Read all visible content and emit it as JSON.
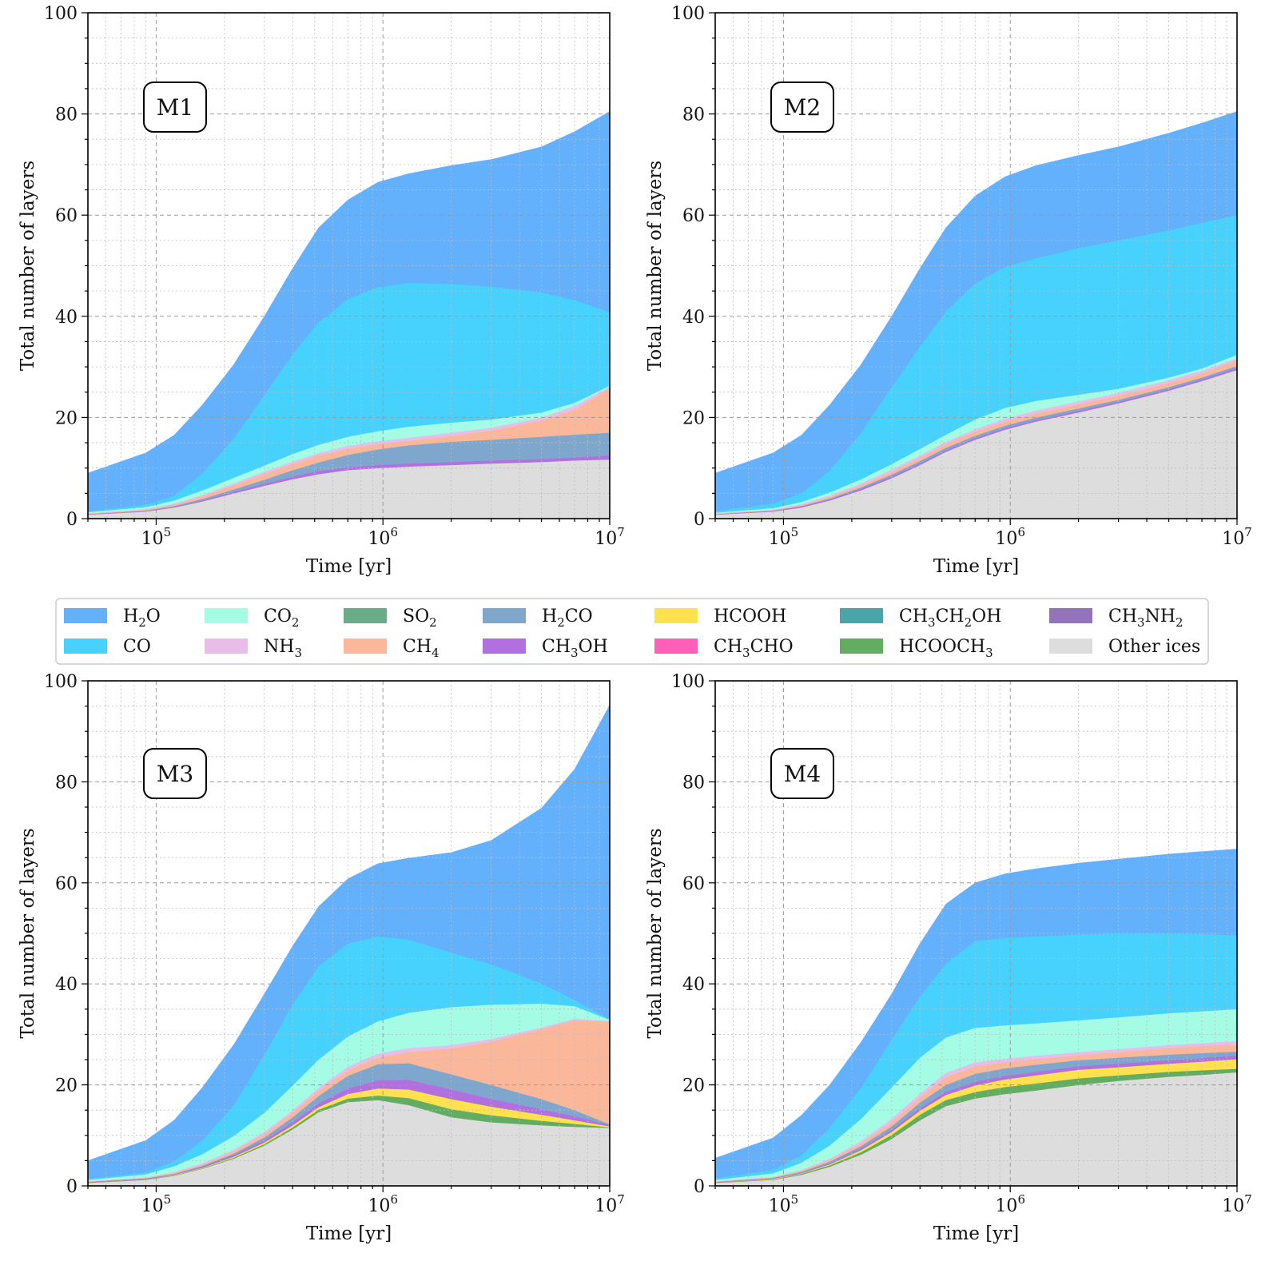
{
  "legend": [
    {
      "key": "Other ices",
      "parts": [
        [
          "Other ices",
          ""
        ]
      ],
      "color": "#dddddd"
    },
    {
      "key": "HCOOCH3",
      "parts": [
        [
          "HCOOCH",
          ""
        ],
        [
          "3",
          "sub"
        ]
      ],
      "color": "#63ad62"
    },
    {
      "key": "HCOOH",
      "parts": [
        [
          "HCOOH",
          ""
        ]
      ],
      "color": "#ffe14d"
    },
    {
      "key": "CH3OH",
      "parts": [
        [
          "CH",
          ""
        ],
        [
          "3",
          "sub"
        ],
        [
          "OH",
          ""
        ]
      ],
      "color": "#b26fe0"
    },
    {
      "key": "H2CO",
      "parts": [
        [
          "H",
          ""
        ],
        [
          "2",
          "sub"
        ],
        [
          "CO",
          ""
        ]
      ],
      "color": "#7fa6cc"
    },
    {
      "key": "CH4",
      "parts": [
        [
          "CH",
          ""
        ],
        [
          "4",
          "sub"
        ]
      ],
      "color": "#fbb79a"
    },
    {
      "key": "NH3",
      "parts": [
        [
          "NH",
          ""
        ],
        [
          "3",
          "sub"
        ]
      ],
      "color": "#e8bde8"
    },
    {
      "key": "CO2",
      "parts": [
        [
          "CO",
          ""
        ],
        [
          "2",
          "sub"
        ]
      ],
      "color": "#a3fce3"
    },
    {
      "key": "CO",
      "parts": [
        [
          "CO",
          ""
        ]
      ],
      "color": "#47d2fd"
    },
    {
      "key": "H2O",
      "parts": [
        [
          "H",
          ""
        ],
        [
          "2",
          "sub"
        ],
        [
          "O",
          ""
        ]
      ],
      "color": "#63b0fd"
    },
    {
      "key": "SO2",
      "parts": [
        [
          "SO",
          ""
        ],
        [
          "2",
          "sub"
        ]
      ],
      "color": "#6aac87"
    },
    {
      "key": "CH3CHO",
      "parts": [
        [
          "CH",
          ""
        ],
        [
          "3",
          "sub"
        ],
        [
          "CHO",
          ""
        ]
      ],
      "color": "#ff5fb8"
    },
    {
      "key": "CH3CH2OH",
      "parts": [
        [
          "CH",
          ""
        ],
        [
          "3",
          "sub"
        ],
        [
          "CH",
          ""
        ],
        [
          "2",
          "sub"
        ],
        [
          "OH",
          ""
        ]
      ],
      "color": "#49a5a8"
    },
    {
      "key": "CH3NH2",
      "parts": [
        [
          "CH",
          ""
        ],
        [
          "3",
          "sub"
        ],
        [
          "NH",
          ""
        ],
        [
          "2",
          "sub"
        ]
      ],
      "color": "#9473bd"
    }
  ],
  "legend_order": [
    "H2O",
    "CO",
    "CO2",
    "NH3",
    "SO2",
    "CH4",
    "H2CO",
    "CH3OH",
    "HCOOH",
    "CH3CHO",
    "CH3CH2OH",
    "HCOOCH3",
    "CH3NH2",
    "Other ices"
  ],
  "chart_data": [
    {
      "type": "area",
      "stacked": true,
      "panel": "M1",
      "xlabel": "Time [yr]",
      "ylabel": "Total number of layers",
      "xscale": "log",
      "xlim": [
        50000,
        10000000
      ],
      "ylim": [
        0,
        100
      ],
      "xticks": [
        "10^5",
        "10^6",
        "10^7"
      ],
      "yticks": [
        0,
        20,
        40,
        60,
        80,
        100
      ],
      "x": [
        50000,
        90000,
        120000,
        160000,
        220000,
        300000,
        400000,
        520000,
        700000,
        950000,
        1300000,
        2000000,
        3000000,
        5000000,
        7000000,
        10000000
      ],
      "stack_tops": [
        {
          "key": "Other ices",
          "values": [
            0.8,
            1.4,
            2.2,
            3.4,
            5.0,
            6.5,
            7.8,
            8.8,
            9.6,
            10.0,
            10.3,
            10.6,
            10.9,
            11.2,
            11.5,
            11.7
          ]
        },
        {
          "key": "CH3OH",
          "values": [
            0.9,
            1.5,
            2.3,
            3.6,
            5.3,
            6.9,
            8.3,
            9.4,
            10.2,
            10.6,
            10.9,
            11.2,
            11.5,
            11.8,
            12.1,
            12.5
          ]
        },
        {
          "key": "H2CO",
          "values": [
            0.9,
            1.6,
            2.5,
            3.9,
            5.8,
            7.7,
            9.6,
            11.1,
            12.6,
            13.7,
            14.5,
            15.2,
            15.6,
            16.2,
            16.6,
            17.0
          ]
        },
        {
          "key": "CH4",
          "values": [
            1.0,
            1.8,
            2.8,
            4.4,
            6.6,
            8.8,
            10.8,
            12.5,
            13.8,
            14.7,
            15.4,
            16.4,
            17.4,
            19.4,
            21.5,
            25.8
          ]
        },
        {
          "key": "NH3",
          "values": [
            1.1,
            1.9,
            3.0,
            4.7,
            7.0,
            9.3,
            11.3,
            13.0,
            14.4,
            15.3,
            16.0,
            17.0,
            18.0,
            20.0,
            22.3,
            26.1
          ]
        },
        {
          "key": "CO2",
          "values": [
            1.3,
            2.3,
            3.6,
            5.6,
            8.1,
            10.5,
            12.8,
            14.6,
            16.2,
            17.3,
            18.2,
            19.0,
            19.6,
            21.0,
            22.9,
            26.3
          ]
        },
        {
          "key": "CO",
          "values": [
            1.4,
            2.8,
            4.5,
            9.0,
            15.8,
            24.5,
            32.5,
            38.8,
            43.4,
            45.8,
            46.6,
            46.4,
            45.9,
            44.7,
            43.2,
            40.8
          ]
        },
        {
          "key": "H2O",
          "values": [
            9.0,
            13.0,
            16.5,
            22.5,
            30.5,
            40.0,
            49.5,
            57.5,
            63.0,
            66.5,
            68.2,
            69.8,
            71.0,
            73.5,
            76.5,
            80.5
          ]
        }
      ]
    },
    {
      "type": "area",
      "stacked": true,
      "panel": "M2",
      "xlabel": "Time [yr]",
      "ylabel": "Total number of layers",
      "xscale": "log",
      "xlim": [
        50000,
        10000000
      ],
      "ylim": [
        0,
        100
      ],
      "xticks": [
        "10^5",
        "10^6",
        "10^7"
      ],
      "yticks": [
        0,
        20,
        40,
        60,
        80,
        100
      ],
      "x": [
        50000,
        90000,
        120000,
        160000,
        220000,
        300000,
        400000,
        520000,
        700000,
        950000,
        1300000,
        2000000,
        3000000,
        5000000,
        7000000,
        10000000
      ],
      "stack_tops": [
        {
          "key": "Other ices",
          "values": [
            0.8,
            1.4,
            2.2,
            3.6,
            5.6,
            8.0,
            10.6,
            13.2,
            15.6,
            17.6,
            19.2,
            21.0,
            22.8,
            25.3,
            27.2,
            29.4
          ]
        },
        {
          "key": "CH3OH",
          "values": [
            0.9,
            1.5,
            2.4,
            3.8,
            5.9,
            8.3,
            10.9,
            13.5,
            15.9,
            17.9,
            19.5,
            21.3,
            23.1,
            25.6,
            27.5,
            29.8
          ]
        },
        {
          "key": "H2CO",
          "values": [
            0.9,
            1.6,
            2.5,
            4.0,
            6.2,
            8.7,
            11.4,
            14.0,
            16.4,
            18.4,
            20.0,
            21.8,
            23.5,
            26.0,
            27.9,
            30.2
          ]
        },
        {
          "key": "CH4",
          "values": [
            1.0,
            1.7,
            2.7,
            4.3,
            6.6,
            9.2,
            12.0,
            14.7,
            17.2,
            19.2,
            20.8,
            22.6,
            24.3,
            26.8,
            28.7,
            31.3
          ]
        },
        {
          "key": "NH3",
          "values": [
            1.1,
            1.8,
            2.9,
            4.6,
            7.0,
            9.7,
            12.5,
            15.2,
            17.7,
            19.8,
            21.4,
            23.2,
            24.9,
            27.4,
            29.3,
            31.7
          ]
        },
        {
          "key": "CO2",
          "values": [
            1.2,
            2.1,
            3.3,
            5.2,
            7.8,
            10.8,
            13.8,
            16.6,
            19.6,
            21.9,
            23.3,
            24.5,
            25.7,
            27.9,
            29.7,
            32.4
          ]
        },
        {
          "key": "CO",
          "values": [
            1.5,
            3.0,
            5.0,
            9.5,
            17.0,
            26.0,
            34.0,
            41.0,
            46.5,
            49.8,
            51.5,
            53.5,
            55.0,
            57.0,
            58.5,
            60.0
          ]
        },
        {
          "key": "H2O",
          "values": [
            9.0,
            13.0,
            16.5,
            22.5,
            30.5,
            40.0,
            49.5,
            57.5,
            63.8,
            67.6,
            69.8,
            71.8,
            73.5,
            76.2,
            78.2,
            80.5
          ]
        }
      ]
    },
    {
      "type": "area",
      "stacked": true,
      "panel": "M3",
      "xlabel": "Time [yr]",
      "ylabel": "Total number of layers",
      "xscale": "log",
      "xlim": [
        50000,
        10000000
      ],
      "ylim": [
        0,
        100
      ],
      "xticks": [
        "10^5",
        "10^6",
        "10^7"
      ],
      "yticks": [
        0,
        20,
        40,
        60,
        80,
        100
      ],
      "x": [
        50000,
        90000,
        120000,
        160000,
        220000,
        300000,
        400000,
        520000,
        700000,
        950000,
        1300000,
        2000000,
        3000000,
        5000000,
        7000000,
        10000000
      ],
      "stack_tops": [
        {
          "key": "Other ices",
          "values": [
            0.6,
            1.2,
            2.0,
            3.4,
            5.4,
            8.0,
            11.2,
            14.6,
            16.6,
            17.0,
            16.0,
            13.6,
            12.6,
            12.0,
            11.7,
            11.5
          ]
        },
        {
          "key": "HCOOCH3",
          "values": [
            0.7,
            1.3,
            2.1,
            3.5,
            5.6,
            8.3,
            11.6,
            15.1,
            17.3,
            17.9,
            17.4,
            15.2,
            14.0,
            12.9,
            12.3,
            11.6
          ]
        },
        {
          "key": "HCOOH",
          "values": [
            0.7,
            1.3,
            2.2,
            3.6,
            5.8,
            8.6,
            12.0,
            15.6,
            18.2,
            19.3,
            19.1,
            17.2,
            15.7,
            14.1,
            13.0,
            11.8
          ]
        },
        {
          "key": "CH3OH",
          "values": [
            0.8,
            1.4,
            2.3,
            3.8,
            6.1,
            9.0,
            12.6,
            16.3,
            19.3,
            20.9,
            21.0,
            19.1,
            17.2,
            15.2,
            13.8,
            12.0
          ]
        },
        {
          "key": "H2CO",
          "values": [
            0.8,
            1.5,
            2.4,
            4.0,
            6.4,
            9.6,
            13.6,
            17.8,
            21.8,
            24.1,
            24.3,
            22.1,
            20.0,
            17.2,
            15.0,
            12.2
          ]
        },
        {
          "key": "CH4",
          "values": [
            0.9,
            1.6,
            2.6,
            4.2,
            6.8,
            10.2,
            14.5,
            18.8,
            22.8,
            25.4,
            26.5,
            27.2,
            28.5,
            31.0,
            32.8,
            32.5
          ]
        },
        {
          "key": "NH3",
          "values": [
            1.0,
            1.7,
            2.8,
            4.5,
            7.2,
            10.7,
            15.0,
            19.4,
            23.6,
            26.2,
            27.3,
            27.9,
            29.1,
            31.4,
            33.1,
            32.7
          ]
        },
        {
          "key": "CO2",
          "values": [
            1.2,
            2.3,
            3.9,
            6.3,
            9.9,
            14.5,
            19.9,
            25.0,
            29.6,
            32.6,
            34.3,
            35.4,
            35.9,
            36.1,
            35.6,
            32.9
          ]
        },
        {
          "key": "CO",
          "values": [
            1.4,
            2.7,
            4.9,
            9.0,
            16.0,
            26.0,
            36.0,
            43.5,
            48.0,
            49.4,
            48.8,
            46.2,
            43.9,
            40.1,
            36.8,
            33.0
          ]
        },
        {
          "key": "H2O",
          "values": [
            5.0,
            9.0,
            13.0,
            19.5,
            28.0,
            38.0,
            47.5,
            55.3,
            60.8,
            63.8,
            64.9,
            66.0,
            68.4,
            74.8,
            82.5,
            95.2
          ]
        }
      ]
    },
    {
      "type": "area",
      "stacked": true,
      "panel": "M4",
      "xlabel": "Time [yr]",
      "ylabel": "Total number of layers",
      "xscale": "log",
      "xlim": [
        50000,
        10000000
      ],
      "ylim": [
        0,
        100
      ],
      "xticks": [
        "10^5",
        "10^6",
        "10^7"
      ],
      "yticks": [
        0,
        20,
        40,
        60,
        80,
        100
      ],
      "x": [
        50000,
        90000,
        120000,
        160000,
        220000,
        300000,
        400000,
        520000,
        700000,
        950000,
        1300000,
        2000000,
        3000000,
        5000000,
        7000000,
        10000000
      ],
      "stack_tops": [
        {
          "key": "Other ices",
          "values": [
            0.6,
            1.2,
            2.2,
            3.8,
            6.2,
            9.3,
            13.0,
            15.8,
            17.3,
            18.2,
            18.9,
            20.0,
            20.8,
            21.6,
            22.0,
            22.5
          ]
        },
        {
          "key": "HCOOCH3",
          "values": [
            0.7,
            1.3,
            2.4,
            4.1,
            6.7,
            10.1,
            14.1,
            17.0,
            18.6,
            19.6,
            20.3,
            21.3,
            21.9,
            22.6,
            22.9,
            23.2
          ]
        },
        {
          "key": "HCOOH",
          "values": [
            0.7,
            1.4,
            2.5,
            4.3,
            7.1,
            10.7,
            14.9,
            18.0,
            19.9,
            21.1,
            21.9,
            23.0,
            23.5,
            24.2,
            24.6,
            25.1
          ]
        },
        {
          "key": "CH3OH",
          "values": [
            0.8,
            1.5,
            2.6,
            4.5,
            7.4,
            11.1,
            15.4,
            18.6,
            20.6,
            21.8,
            22.6,
            23.7,
            24.2,
            24.9,
            25.3,
            25.8
          ]
        },
        {
          "key": "H2CO",
          "values": [
            0.8,
            1.6,
            2.8,
            4.8,
            7.9,
            11.8,
            16.5,
            20.0,
            22.2,
            23.3,
            24.0,
            24.9,
            25.4,
            26.0,
            26.3,
            26.6
          ]
        },
        {
          "key": "CH4",
          "values": [
            0.9,
            1.7,
            3.0,
            5.1,
            8.4,
            12.6,
            17.5,
            21.5,
            23.7,
            24.5,
            25.1,
            25.9,
            26.5,
            27.3,
            27.7,
            28.0
          ]
        },
        {
          "key": "NH3",
          "values": [
            1.0,
            1.8,
            3.2,
            5.4,
            8.9,
            13.3,
            18.3,
            22.4,
            24.5,
            25.2,
            25.8,
            26.5,
            27.1,
            27.9,
            28.3,
            28.7
          ]
        },
        {
          "key": "CO2",
          "values": [
            1.2,
            2.5,
            4.6,
            8.0,
            13.3,
            19.5,
            25.4,
            29.4,
            31.3,
            31.8,
            32.2,
            32.8,
            33.4,
            34.2,
            34.6,
            35.0
          ]
        },
        {
          "key": "CO",
          "values": [
            1.5,
            3.2,
            6.1,
            11.5,
            19.5,
            29.0,
            37.5,
            44.0,
            48.5,
            49.1,
            49.4,
            49.8,
            50.0,
            50.0,
            49.9,
            49.6
          ]
        },
        {
          "key": "H2O",
          "values": [
            5.5,
            9.5,
            14.0,
            20.0,
            28.5,
            38.0,
            48.0,
            55.8,
            60.0,
            61.8,
            62.8,
            63.9,
            64.7,
            65.7,
            66.2,
            66.7
          ]
        }
      ]
    }
  ]
}
